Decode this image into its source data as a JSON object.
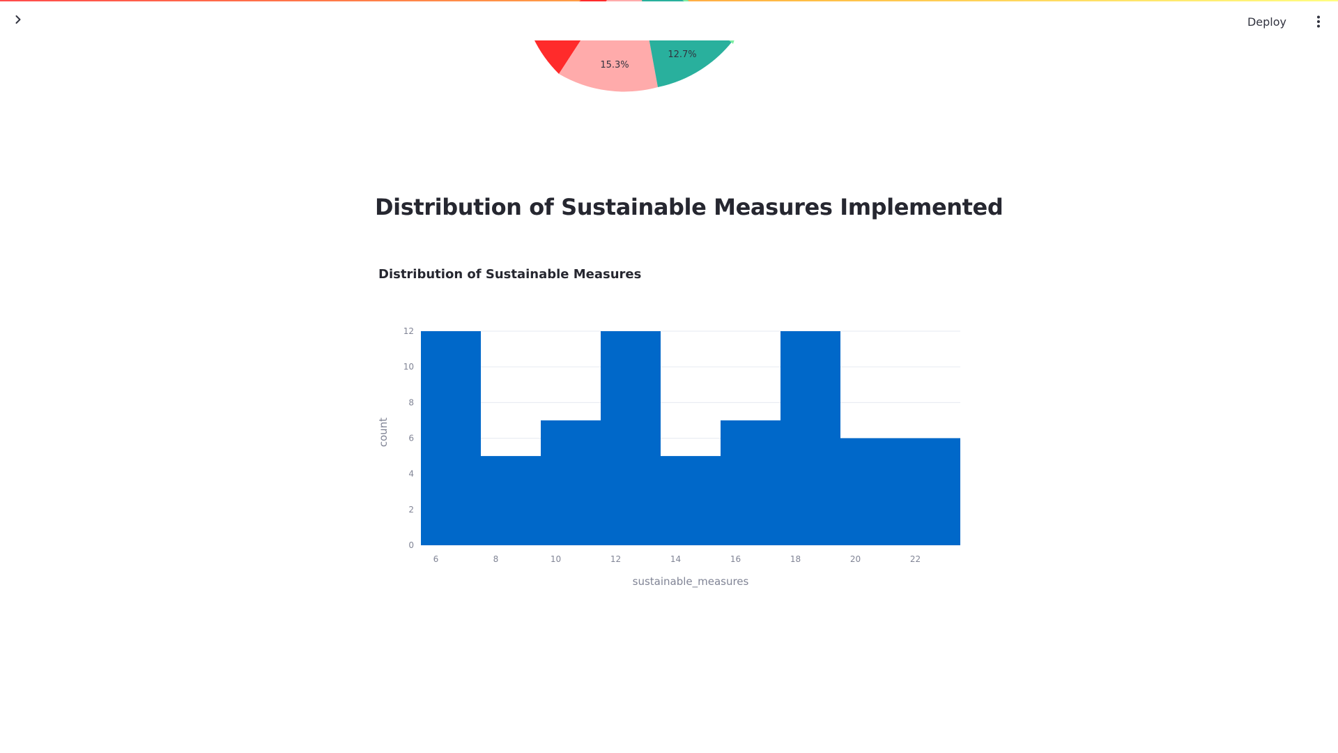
{
  "header": {
    "deploy_label": "Deploy",
    "toggle_icon": "chevron-right-icon",
    "menu_icon": "more-vertical-icon"
  },
  "pie": {
    "visible_labels": [
      {
        "text": "15.3%",
        "color": "#ffabab"
      },
      {
        "text": "12.7%",
        "color": "#29b09d"
      }
    ],
    "colors": [
      "#ff2b2b",
      "#ffabab",
      "#29b09d",
      "#7defa1"
    ]
  },
  "page": {
    "heading": "Distribution of Sustainable Measures Implemented"
  },
  "colors": {
    "bar": "#0068c9",
    "gridline": "#e6eaf1",
    "axis_text": "#808495",
    "heading": "#262730"
  },
  "chart_data": {
    "type": "bar",
    "title": "Distribution of Sustainable Measures",
    "xlabel": "sustainable_measures",
    "ylabel": "count",
    "bins": [
      {
        "x0": 5.5,
        "x1": 7.5,
        "count": 12
      },
      {
        "x0": 7.5,
        "x1": 9.5,
        "count": 5
      },
      {
        "x0": 9.5,
        "x1": 11.5,
        "count": 7
      },
      {
        "x0": 11.5,
        "x1": 13.5,
        "count": 12
      },
      {
        "x0": 13.5,
        "x1": 15.5,
        "count": 5
      },
      {
        "x0": 15.5,
        "x1": 17.5,
        "count": 7
      },
      {
        "x0": 17.5,
        "x1": 19.5,
        "count": 12
      },
      {
        "x0": 19.5,
        "x1": 21.5,
        "count": 6
      },
      {
        "x0": 21.5,
        "x1": 23.5,
        "count": 6
      }
    ],
    "xlim": [
      5.5,
      23.5
    ],
    "ylim": [
      0,
      12
    ],
    "xticks": [
      6,
      8,
      10,
      12,
      14,
      16,
      18,
      20,
      22
    ],
    "yticks": [
      0,
      2,
      4,
      6,
      8,
      10,
      12
    ],
    "grid": true,
    "legend": "none"
  }
}
